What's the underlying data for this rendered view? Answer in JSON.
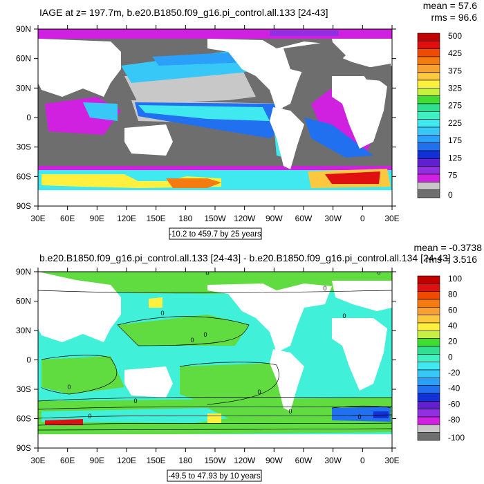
{
  "map1": {
    "title": "IAGE at z= 197.7m, b.e20.B1850.f09_g16.pi_control.all.133 [24-43]",
    "stat_mean": "mean = 57.6",
    "stat_rms": "rms = 96.6",
    "contour_info": "-10.2 to 459.7 by 25 years",
    "colorbar": {
      "labels": [
        "500",
        "425",
        "375",
        "325",
        "275",
        "225",
        "175",
        "125",
        "75",
        "0"
      ],
      "colors": [
        "#c00000",
        "#e01010",
        "#f04a00",
        "#f57a10",
        "#f8a030",
        "#fcc840",
        "#fff040",
        "#c8f040",
        "#40dc30",
        "#30e090",
        "#40f0c0",
        "#40e8f0",
        "#38c8f8",
        "#2aa0f8",
        "#2070f0",
        "#1030d8",
        "#6020d0",
        "#9030e0",
        "#d020e0",
        "#c8c8c8",
        "#6e6e6e"
      ]
    }
  },
  "map2": {
    "title": "b.e20.B1850.f09_g16.pi_control.all.133 [24-43] - b.e20.B1850.f09_g16.pi_control.all.134 [24-43]",
    "stat_mean": "mean = -0.3738",
    "stat_rms": "rms = 3.516",
    "contour_info": "-49.5 to 47.93 by 10 years",
    "zero_label": "0",
    "colorbar": {
      "labels": [
        "100",
        "80",
        "60",
        "40",
        "20",
        "0",
        "-20",
        "-40",
        "-60",
        "-80",
        "-100"
      ],
      "colors": [
        "#c00000",
        "#e01010",
        "#f04a00",
        "#f57a10",
        "#f8a030",
        "#fcc840",
        "#fff040",
        "#c8f040",
        "#40dc30",
        "#30e090",
        "#40f0c0",
        "#40e8f0",
        "#38c8f8",
        "#2aa0f8",
        "#2070f0",
        "#1030d8",
        "#6020d0",
        "#9030e0",
        "#d020e0",
        "#c8c8c8",
        "#6e6e6e"
      ]
    }
  },
  "axes": {
    "lat_labels": [
      "90N",
      "60N",
      "30N",
      "0",
      "30S",
      "60S",
      "90S"
    ],
    "lon_labels": [
      "30E",
      "60E",
      "90E",
      "120E",
      "150E",
      "180",
      "150W",
      "120W",
      "90W",
      "60W",
      "30W",
      "0",
      "30E"
    ]
  },
  "colors": {
    "land": "#ffffff",
    "gray": "#6e6e6e",
    "lightgray": "#c8c8c8",
    "diff_base": "#40f0d8",
    "diff_pos": "#60dc40"
  }
}
